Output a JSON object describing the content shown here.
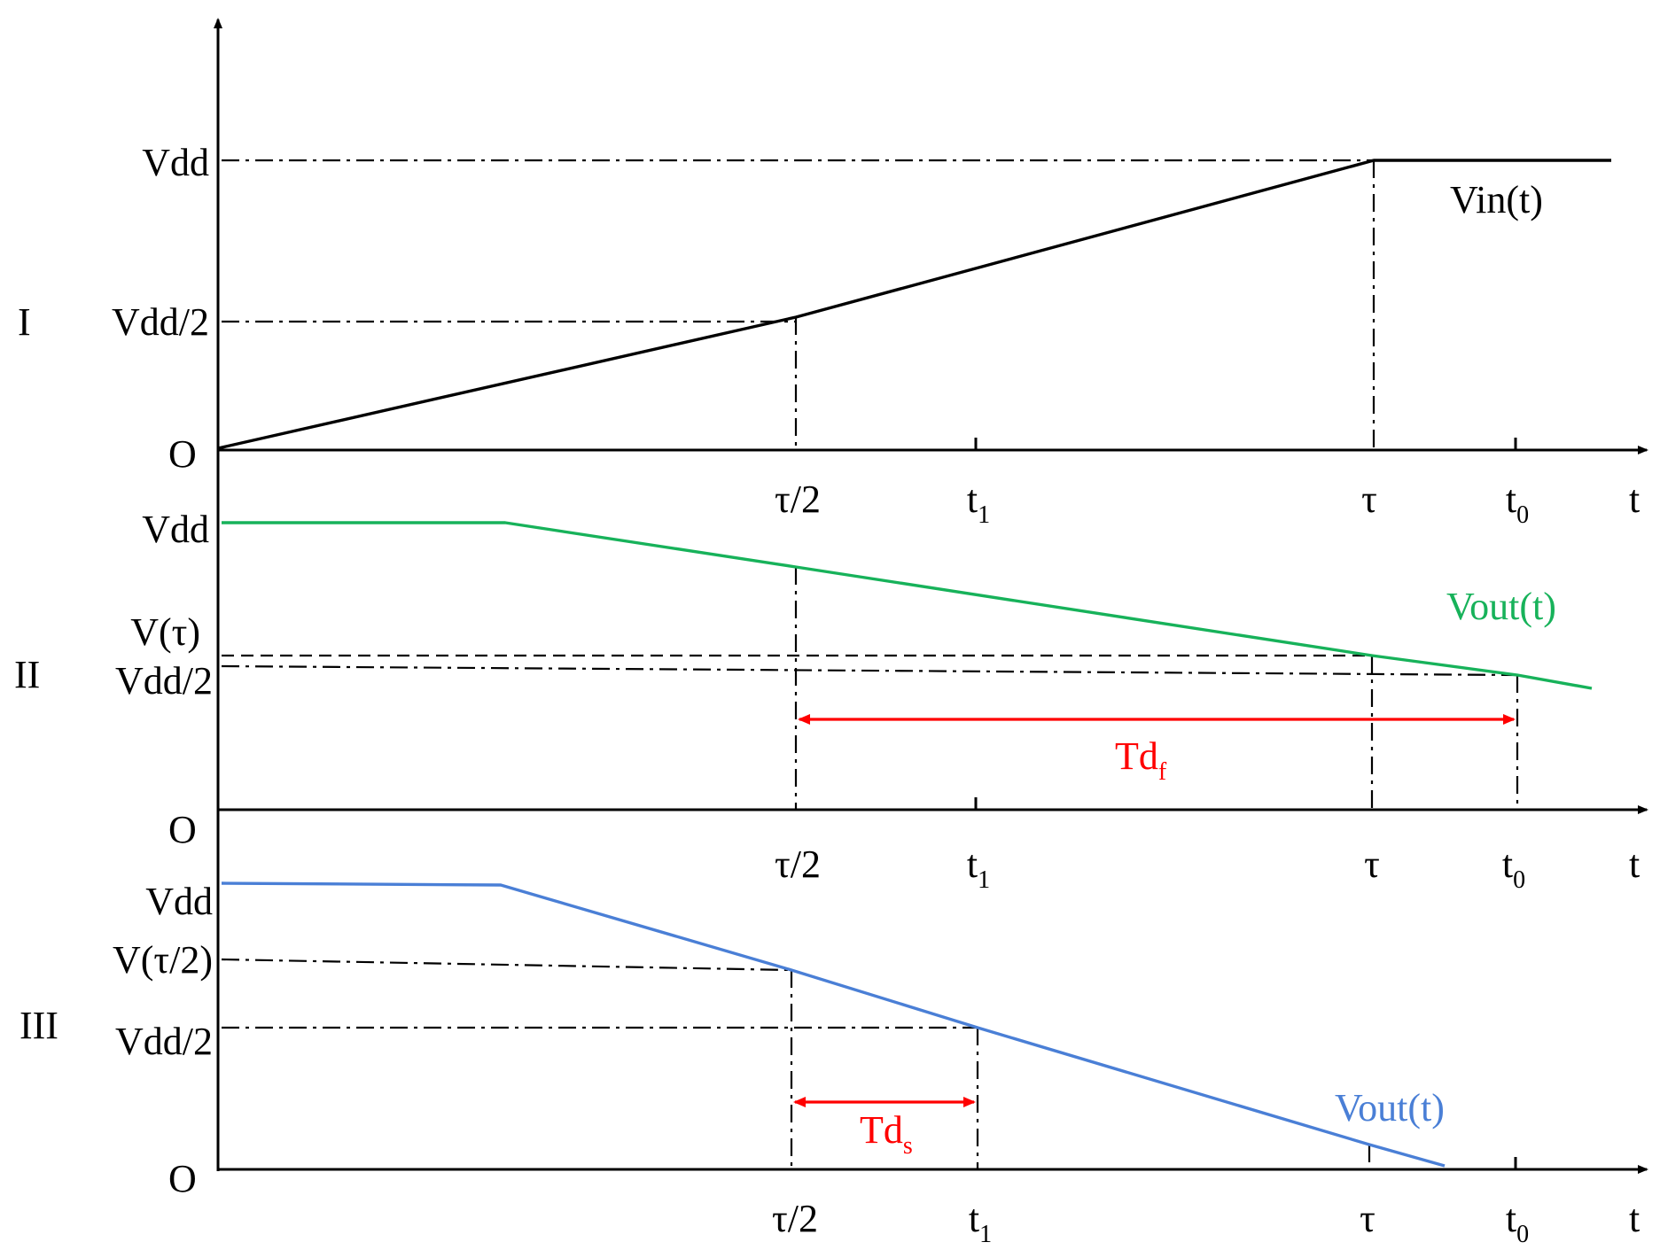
{
  "colors": {
    "axis": "#000000",
    "vin": "#000000",
    "vout_fast": "#17b25a",
    "vout_slow": "#4a7fd6",
    "delay": "#ff0000"
  },
  "panels": [
    {
      "roman": "I",
      "y_labels": {
        "vdd": "Vdd",
        "half": "Vdd/2",
        "origin": "O"
      },
      "curve_label": "Vin(t)",
      "t_labels": {
        "tau_half": "τ/2",
        "t1": "t",
        "t1_sub": "1",
        "tau": "τ",
        "t0": "t",
        "t0_sub": "0",
        "t": "t"
      }
    },
    {
      "roman": "II",
      "y_labels": {
        "vdd": "Vdd",
        "v_tau": "V(τ)",
        "half": "Vdd/2",
        "origin": "O"
      },
      "curve_label": "Vout(t)",
      "delay_label": "Td",
      "delay_sub": "f",
      "t_labels": {
        "tau_half": "τ/2",
        "t1": "t",
        "t1_sub": "1",
        "tau": "τ",
        "t0": "t",
        "t0_sub": "0",
        "t": "t"
      }
    },
    {
      "roman": "III",
      "y_labels": {
        "vdd": "Vdd",
        "v_tau_half": "V(τ/2)",
        "half": "Vdd/2",
        "origin": "O"
      },
      "curve_label": "Vout(t)",
      "delay_label": "Td",
      "delay_sub": "s",
      "t_labels": {
        "tau_half": "τ/2",
        "t1": "t",
        "t1_sub": "1",
        "tau": "τ",
        "t0": "t",
        "t0_sub": "0",
        "t": "t"
      }
    }
  ]
}
